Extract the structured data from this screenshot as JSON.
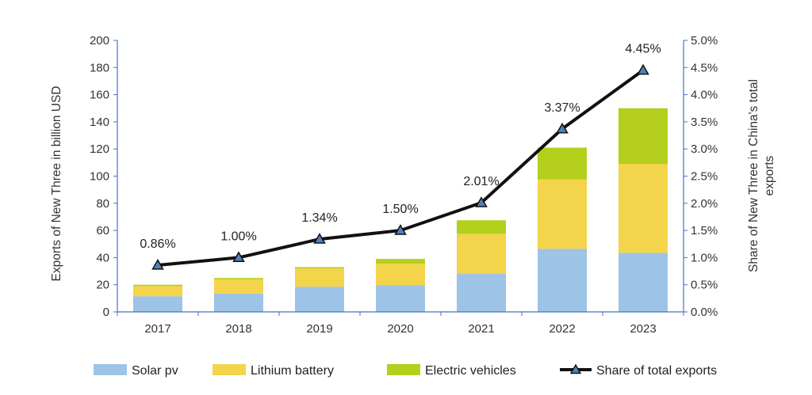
{
  "chart_data": {
    "type": "bar",
    "stacked": true,
    "categories": [
      "2017",
      "2018",
      "2019",
      "2020",
      "2021",
      "2022",
      "2023"
    ],
    "series": [
      {
        "name": "Solar pv",
        "color": "#9dc3e6",
        "values": [
          11.5,
          13.5,
          18.5,
          19.5,
          28,
          46.5,
          43.5
        ]
      },
      {
        "name": "Lithium battery",
        "color": "#f4d44b",
        "values": [
          7.5,
          10.5,
          13.5,
          16,
          29.5,
          51,
          65.5
        ]
      },
      {
        "name": "Electric vehicles",
        "color": "#b4cf1c",
        "values": [
          1,
          1,
          1,
          3.5,
          10,
          23.5,
          41
        ]
      }
    ],
    "line_series": {
      "name": "Share of total exports",
      "color": "#111111",
      "marker_color": "#4f81bd",
      "values": [
        0.86,
        1.0,
        1.34,
        1.5,
        2.01,
        3.37,
        4.45
      ],
      "labels": [
        "0.86%",
        "1.00%",
        "1.34%",
        "1.50%",
        "2.01%",
        "3.37%",
        "4.45%"
      ]
    },
    "ylabel": "Exports of New Three in billion USD",
    "y2label_lines": [
      "Share of New Three in China's total",
      "exports"
    ],
    "ylim": [
      0,
      200
    ],
    "yticks": [
      "0",
      "20",
      "40",
      "60",
      "80",
      "100",
      "120",
      "140",
      "160",
      "180",
      "200"
    ],
    "y2lim": [
      0,
      5
    ],
    "y2ticks": [
      "0.0%",
      "0.5%",
      "1.0%",
      "1.5%",
      "2.0%",
      "2.5%",
      "3.0%",
      "3.5%",
      "4.0%",
      "4.5%",
      "5.0%"
    ],
    "legend_position": "bottom"
  }
}
